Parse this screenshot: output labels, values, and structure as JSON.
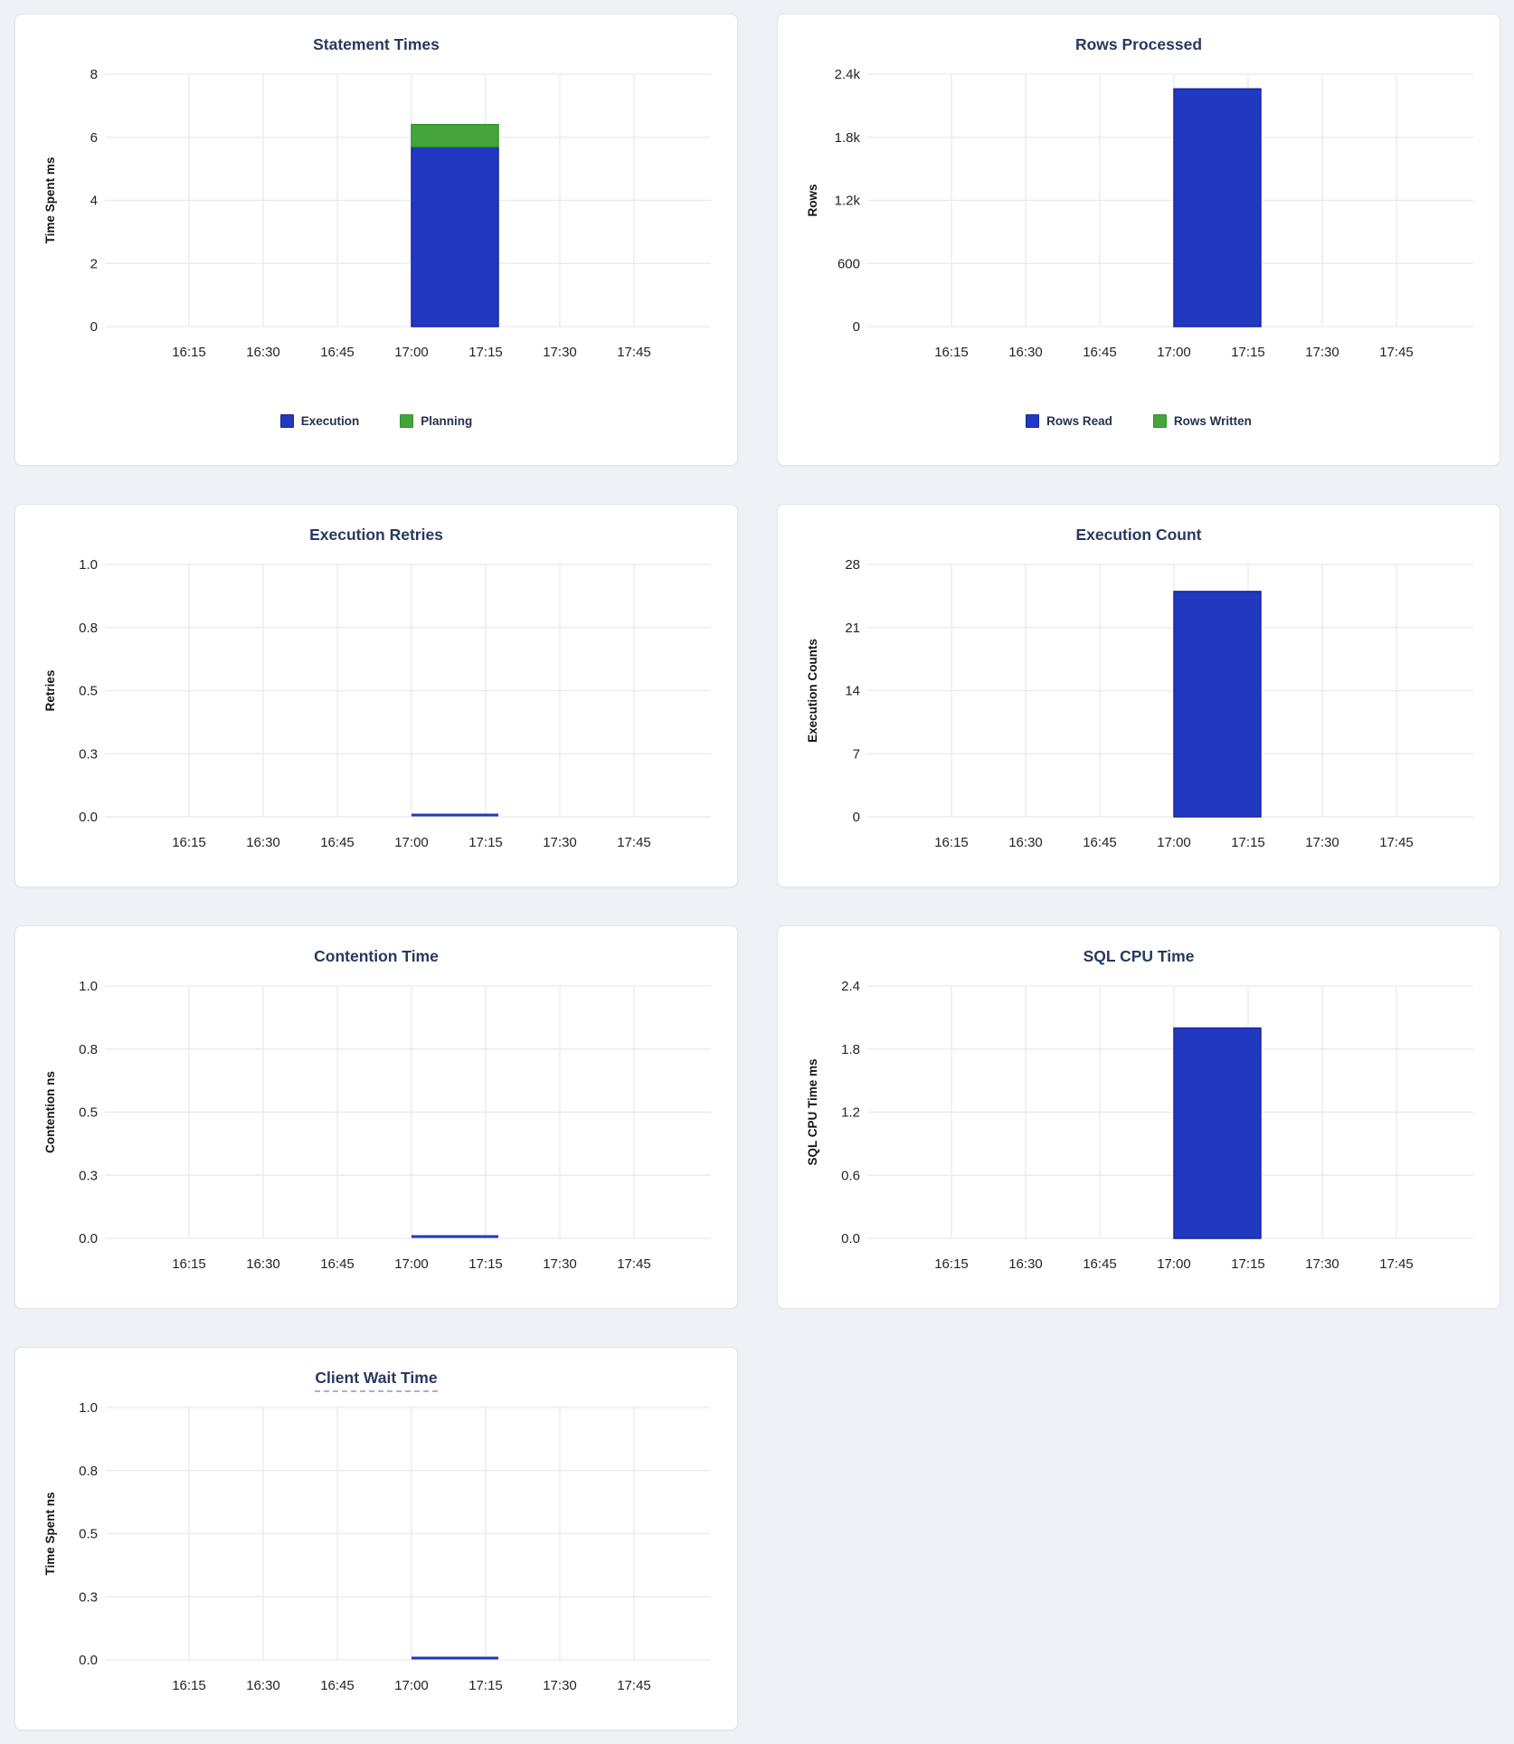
{
  "colors": {
    "blue": "#2138c0",
    "blue_stroke": "#17269e",
    "green": "#46a43c",
    "green_stroke": "#2f9428",
    "title": "#28395f",
    "grid": "#e9eaec",
    "tick": "#242424",
    "page_background": "#eef2f6",
    "card_background": "#ffffff"
  },
  "x_axis": {
    "ticks": [
      "16:15",
      "16:30",
      "16:45",
      "17:00",
      "17:15",
      "17:30",
      "17:45"
    ]
  },
  "bar_window": {
    "start": "17:00",
    "end": "17:17"
  },
  "chart_data": [
    {
      "type": "bar",
      "title": "Statement Times",
      "ylabel": "Time Spent ms",
      "ymax": 8,
      "ylim": [
        0,
        8
      ],
      "ytick_labels": [
        "8",
        "6",
        "4",
        "2",
        "0"
      ],
      "x": [
        "16:15",
        "16:30",
        "16:45",
        "17:00",
        "17:15",
        "17:30",
        "17:45"
      ],
      "stacked": true,
      "series": [
        {
          "name": "Execution",
          "color": "blue",
          "values": [
            0,
            0,
            0,
            5.7,
            0,
            0,
            0
          ]
        },
        {
          "name": "Planning",
          "color": "green",
          "values": [
            0,
            0,
            0,
            0.7,
            0,
            0,
            0
          ]
        }
      ],
      "legend": [
        {
          "label": "Execution",
          "color": "blue"
        },
        {
          "label": "Planning",
          "color": "green"
        }
      ],
      "legend_position": "bottom-center"
    },
    {
      "type": "bar",
      "title": "Rows Processed",
      "ylabel": "Rows",
      "ymax": 2400,
      "ylim": [
        0,
        2400
      ],
      "ytick_labels": [
        "2.4k",
        "1.8k",
        "1.2k",
        "600",
        "0"
      ],
      "x": [
        "16:15",
        "16:30",
        "16:45",
        "17:00",
        "17:15",
        "17:30",
        "17:45"
      ],
      "stacked": true,
      "series": [
        {
          "name": "Rows Read",
          "color": "blue",
          "values": [
            0,
            0,
            0,
            2260,
            0,
            0,
            0
          ]
        },
        {
          "name": "Rows Written",
          "color": "green",
          "values": [
            0,
            0,
            0,
            0,
            0,
            0,
            0
          ]
        }
      ],
      "legend": [
        {
          "label": "Rows Read",
          "color": "blue"
        },
        {
          "label": "Rows Written",
          "color": "green"
        }
      ],
      "legend_position": "bottom-center"
    },
    {
      "type": "line",
      "title": "Execution Retries",
      "ylabel": "Retries",
      "ymax": 1,
      "ylim": [
        0,
        1
      ],
      "ytick_labels": [
        "1.0",
        "0.8",
        "0.5",
        "0.3",
        "0.0"
      ],
      "x": [
        "16:15",
        "16:30",
        "16:45",
        "17:00",
        "17:15",
        "17:30",
        "17:45"
      ],
      "line": {
        "value": 0,
        "x_start": "17:00",
        "x_end": "17:17",
        "color": "blue"
      }
    },
    {
      "type": "bar",
      "title": "Execution Count",
      "ylabel": "Execution Counts",
      "ymax": 28,
      "ylim": [
        0,
        28
      ],
      "ytick_labels": [
        "28",
        "21",
        "14",
        "7",
        "0"
      ],
      "x": [
        "16:15",
        "16:30",
        "16:45",
        "17:00",
        "17:15",
        "17:30",
        "17:45"
      ],
      "stacked": false,
      "series": [
        {
          "name": "Execution Count",
          "color": "blue",
          "values": [
            0,
            0,
            0,
            25,
            0,
            0,
            0
          ]
        }
      ]
    },
    {
      "type": "line",
      "title": "Contention Time",
      "ylabel": "Contention ns",
      "ymax": 1,
      "ylim": [
        0,
        1
      ],
      "ytick_labels": [
        "1.0",
        "0.8",
        "0.5",
        "0.3",
        "0.0"
      ],
      "x": [
        "16:15",
        "16:30",
        "16:45",
        "17:00",
        "17:15",
        "17:30",
        "17:45"
      ],
      "line": {
        "value": 0,
        "x_start": "17:00",
        "x_end": "17:17",
        "color": "blue"
      }
    },
    {
      "type": "bar",
      "title": "SQL CPU Time",
      "ylabel": "SQL CPU Time ms",
      "ymax": 2.4,
      "ylim": [
        0,
        2.4
      ],
      "ytick_labels": [
        "2.4",
        "1.8",
        "1.2",
        "0.6",
        "0.0"
      ],
      "x": [
        "16:15",
        "16:30",
        "16:45",
        "17:00",
        "17:15",
        "17:30",
        "17:45"
      ],
      "stacked": false,
      "series": [
        {
          "name": "SQL CPU Time",
          "color": "blue",
          "values": [
            0,
            0,
            0,
            2.0,
            0,
            0,
            0
          ]
        }
      ]
    },
    {
      "type": "line",
      "title": "Client Wait Time",
      "title_style": "dashed-underline",
      "ylabel": "Time Spent ns",
      "ymax": 1,
      "ylim": [
        0,
        1
      ],
      "ytick_labels": [
        "1.0",
        "0.8",
        "0.5",
        "0.3",
        "0.0"
      ],
      "x": [
        "16:15",
        "16:30",
        "16:45",
        "17:00",
        "17:15",
        "17:30",
        "17:45"
      ],
      "line": {
        "value": 0,
        "x_start": "17:00",
        "x_end": "17:17",
        "color": "blue"
      }
    }
  ]
}
